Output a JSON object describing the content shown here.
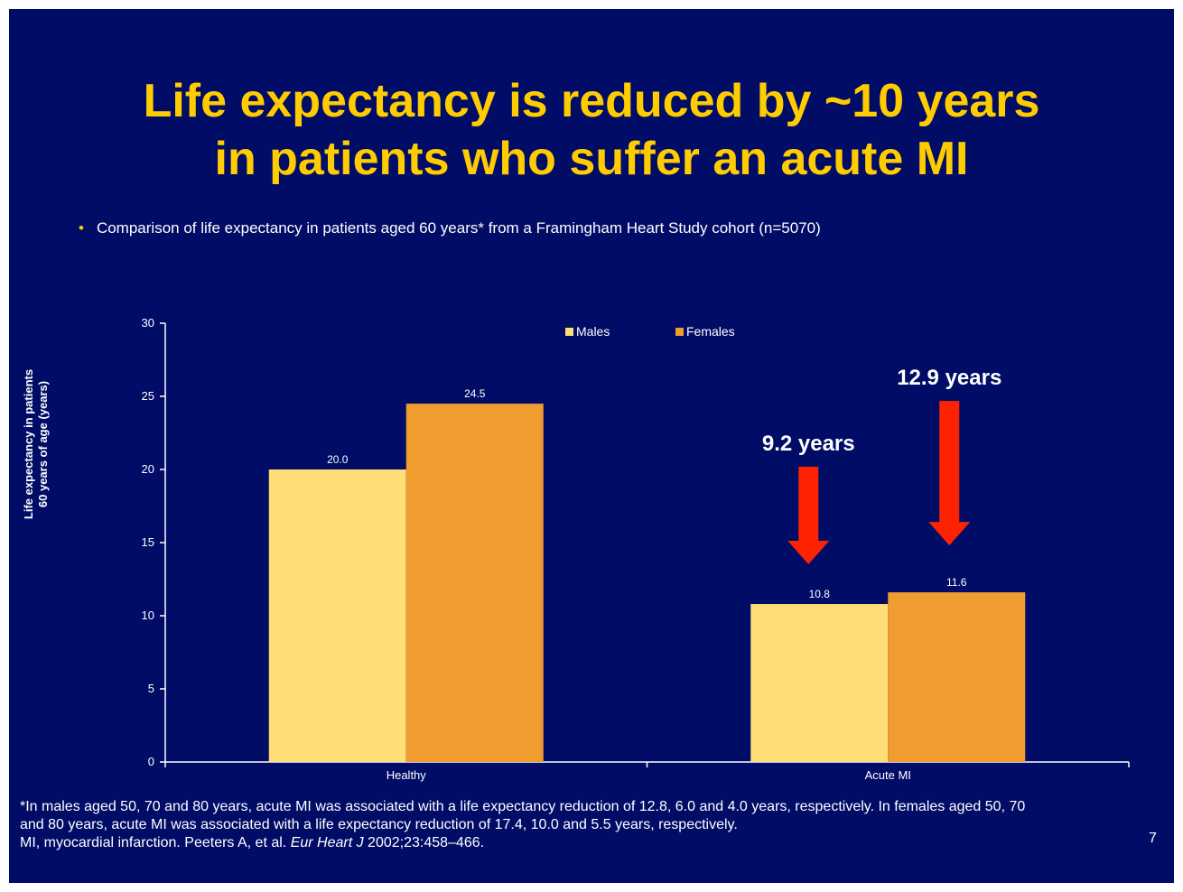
{
  "slide": {
    "title_line1": "Life expectancy is reduced by ~10 years",
    "title_line2": "in patients who suffer an acute MI",
    "bullet": "Comparison of life expectancy in patients aged 60 years* from a Framingham Heart Study cohort (n=5070)",
    "footnote_line1": "*In males aged 50, 70 and 80 years, acute MI was associated with a life expectancy reduction of 12.8, 6.0 and 4.0 years, respectively. In females aged 50, 70",
    "footnote_line2": "and 80 years, acute MI was associated with a life expectancy reduction of 17.4, 10.0 and 5.5 years, respectively.",
    "footnote_line3_prefix": "MI, myocardial infarction. Peeters A, et al. ",
    "footnote_journal": "Eur Heart J",
    "footnote_line3_suffix": " 2002;23:458–466.",
    "page_number": "7",
    "colors": {
      "background": "#000c66",
      "title": "#ffcc00",
      "arrow": "#ff2200"
    }
  },
  "chart_data": {
    "type": "bar",
    "categories": [
      "Healthy",
      "Acute MI"
    ],
    "series": [
      {
        "name": "Males",
        "values": [
          20.0,
          10.8
        ],
        "labels": [
          "20.0",
          "10.8"
        ],
        "color": "#ffdd77"
      },
      {
        "name": "Females",
        "values": [
          24.5,
          11.6
        ],
        "labels": [
          "24.5",
          "11.6"
        ],
        "color": "#f09d30"
      }
    ],
    "ylabel_line1": "Life expectancy in patients",
    "ylabel_line2": "60 years of age (years)",
    "xlabel": "",
    "ylim": [
      0,
      30
    ],
    "yticks": [
      0,
      5,
      10,
      15,
      20,
      25,
      30
    ],
    "grid": false,
    "legend": "top-center",
    "annotations": [
      {
        "text": "9.2 years",
        "category": "Acute MI",
        "series": "Males"
      },
      {
        "text": "12.9 years",
        "category": "Acute MI",
        "series": "Females"
      }
    ]
  }
}
